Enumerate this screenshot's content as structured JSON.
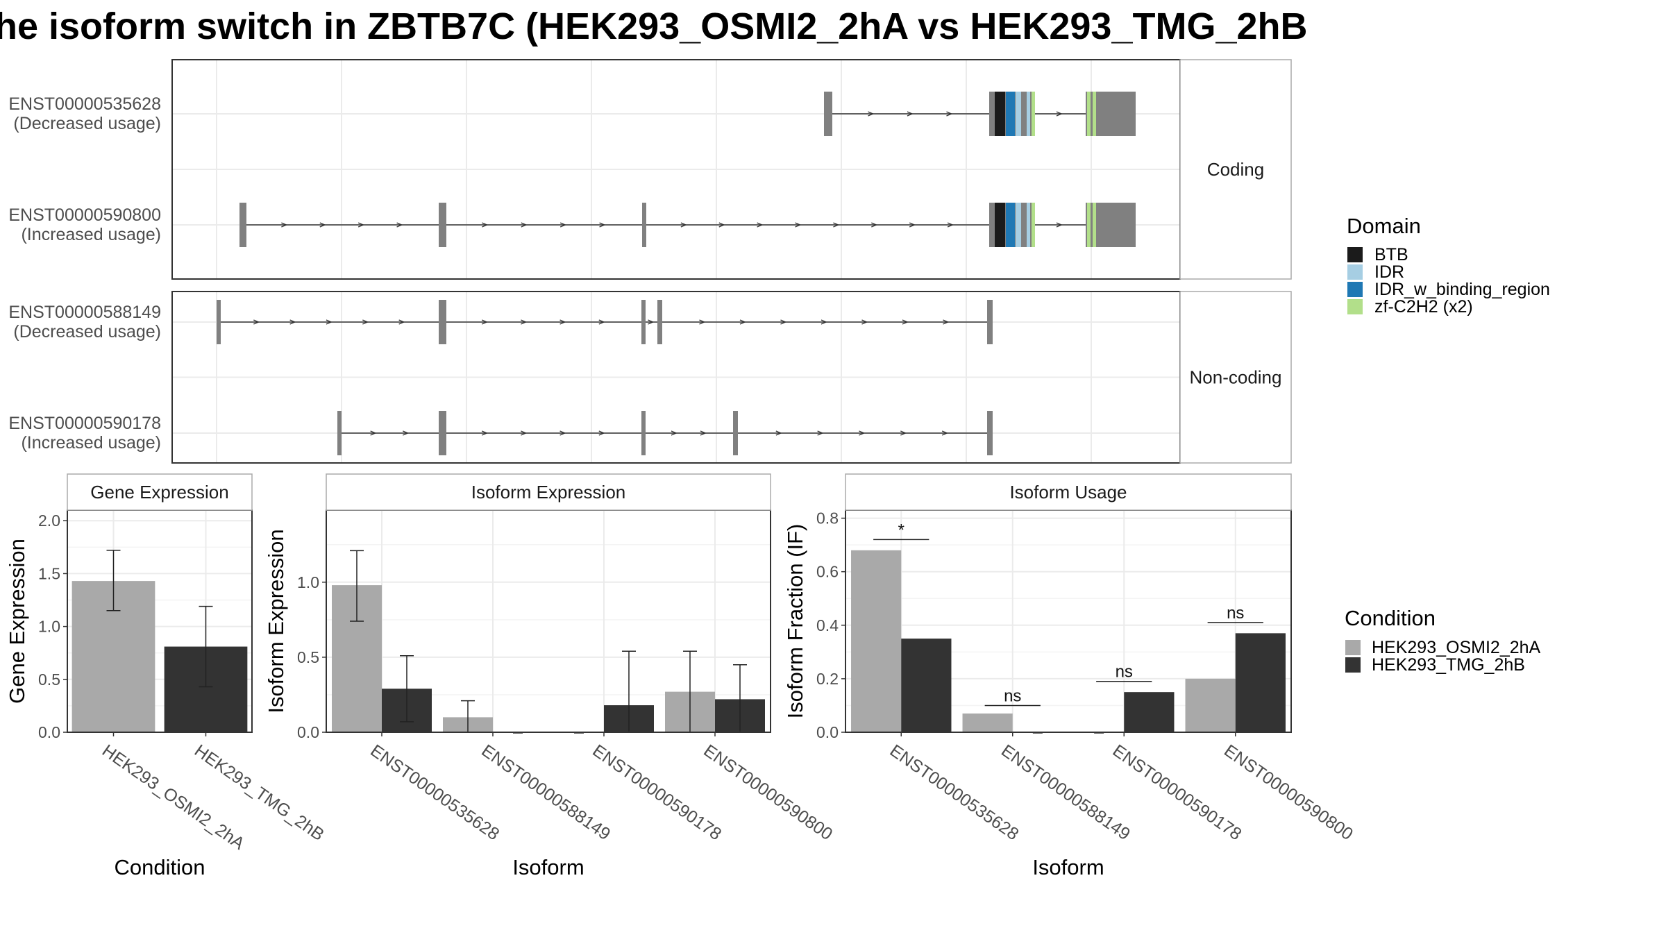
{
  "title": "he isoform switch in ZBTB7C (HEK293_OSMI2_2hA vs HEK293_TMG_2hB",
  "colors": {
    "BTB": "#1b1b1b",
    "IDR": "#a6cee3",
    "IDR_w_binding_region": "#1f78b4",
    "zf-C2H2 (x2)": "#b2df8a",
    "exon": "#808080",
    "cond_a": "#a9a9a9",
    "cond_b": "#333333"
  },
  "domain_legend": {
    "title": "Domain",
    "items": [
      "BTB",
      "IDR",
      "IDR_w_binding_region",
      "zf-C2H2 (x2)"
    ]
  },
  "condition_legend": {
    "title": "Condition",
    "items": [
      "HEK293_OSMI2_2hA",
      "HEK293_TMG_2hB"
    ]
  },
  "chart_data": [
    {
      "type": "gene-structure",
      "facets": [
        {
          "label": "Coding",
          "transcripts": [
            {
              "id": "ENST00000535628",
              "usage": "(Decreased usage)"
            },
            {
              "id": "ENST00000590800",
              "usage": "(Increased usage)"
            }
          ]
        },
        {
          "label": "Non-coding",
          "transcripts": [
            {
              "id": "ENST00000588149",
              "usage": "(Decreased usage)"
            },
            {
              "id": "ENST00000590178",
              "usage": "(Increased usage)"
            }
          ]
        }
      ]
    },
    {
      "type": "bar",
      "title": "Gene Expression",
      "xlabel": "Condition",
      "ylabel": "Gene Expression",
      "ylim": [
        0,
        2.1
      ],
      "yticks": [
        "0.0",
        "0.5",
        "1.0",
        "1.5",
        "2.0"
      ],
      "categories": [
        "HEK293_OSMI2_2hA",
        "HEK293_TMG_2hB"
      ],
      "values": [
        1.43,
        0.81
      ],
      "errors": [
        [
          1.15,
          1.72
        ],
        [
          0.43,
          1.19
        ]
      ]
    },
    {
      "type": "bar",
      "title": "Isoform Expression",
      "xlabel": "Isoform",
      "ylabel": "Isoform Expression",
      "ylim": [
        0,
        1.48
      ],
      "yticks": [
        "0.0",
        "0.5",
        "1.0"
      ],
      "categories": [
        "ENST00000535628",
        "ENST00000588149",
        "ENST00000590178",
        "ENST00000590800"
      ],
      "series": [
        {
          "name": "HEK293_OSMI2_2hA",
          "values": [
            0.98,
            0.1,
            0.0,
            0.27
          ],
          "errors": [
            [
              0.74,
              1.21
            ],
            [
              0.0,
              0.21
            ],
            null,
            [
              0.0,
              0.54
            ]
          ]
        },
        {
          "name": "HEK293_TMG_2hB",
          "values": [
            0.29,
            0.0,
            0.18,
            0.22
          ],
          "errors": [
            [
              0.07,
              0.51
            ],
            null,
            [
              0.0,
              0.54
            ],
            [
              0.0,
              0.45
            ]
          ]
        }
      ]
    },
    {
      "type": "bar",
      "title": "Isoform Usage",
      "xlabel": "Isoform",
      "ylabel": "Isoform Fraction (IF)",
      "ylim": [
        0,
        0.83
      ],
      "yticks": [
        "0.0",
        "0.2",
        "0.4",
        "0.6",
        "0.8"
      ],
      "categories": [
        "ENST00000535628",
        "ENST00000588149",
        "ENST00000590178",
        "ENST00000590800"
      ],
      "series": [
        {
          "name": "HEK293_OSMI2_2hA",
          "values": [
            0.68,
            0.07,
            0.0,
            0.2
          ]
        },
        {
          "name": "HEK293_TMG_2hB",
          "values": [
            0.35,
            0.0,
            0.15,
            0.37
          ]
        }
      ],
      "significance": [
        {
          "label": "*",
          "y": 0.72
        },
        {
          "label": "ns",
          "y": 0.1
        },
        {
          "label": "ns",
          "y": 0.19
        },
        {
          "label": "ns",
          "y": 0.41
        }
      ]
    }
  ]
}
